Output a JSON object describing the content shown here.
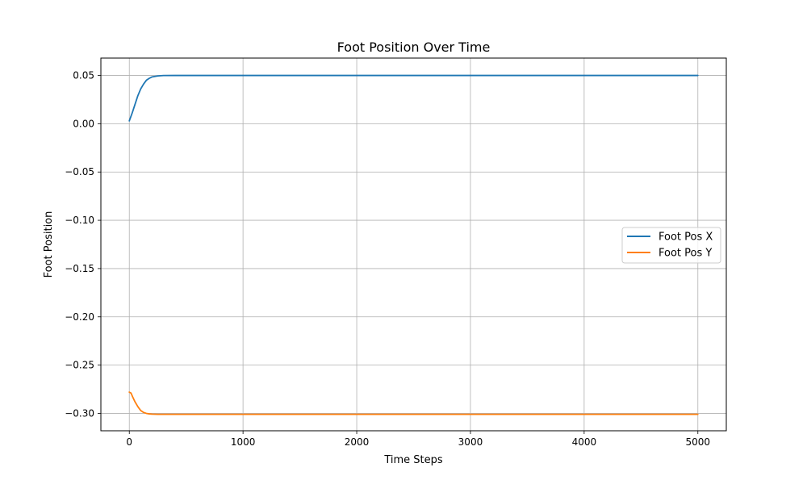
{
  "chart_data": {
    "type": "line",
    "title": "Foot Position Over Time",
    "xlabel": "Time Steps",
    "ylabel": "Foot Position",
    "xlim": [
      -250,
      5250
    ],
    "ylim": [
      -0.318,
      0.068
    ],
    "xticks": [
      0,
      1000,
      2000,
      3000,
      4000,
      5000
    ],
    "xtick_labels": [
      "0",
      "1000",
      "2000",
      "3000",
      "4000",
      "5000"
    ],
    "yticks": [
      0.05,
      0.0,
      -0.05,
      -0.1,
      -0.15,
      -0.2,
      -0.25,
      -0.3
    ],
    "ytick_labels": [
      "0.05",
      "0.00",
      "−0.05",
      "−0.10",
      "−0.15",
      "−0.20",
      "−0.25",
      "−0.30"
    ],
    "grid": true,
    "legend_position": "center-right",
    "series": [
      {
        "name": "Foot Pos X",
        "color": "#1f77b4",
        "x": [
          0,
          25,
          50,
          75,
          100,
          125,
          150,
          175,
          200,
          250,
          300,
          400,
          500,
          1000,
          2000,
          3000,
          4000,
          5000
        ],
        "y": [
          0.003,
          0.011,
          0.02,
          0.029,
          0.036,
          0.041,
          0.045,
          0.047,
          0.0485,
          0.0495,
          0.0499,
          0.05,
          0.05,
          0.05,
          0.05,
          0.05,
          0.05,
          0.05
        ]
      },
      {
        "name": "Foot Pos Y",
        "color": "#ff7f0e",
        "x": [
          0,
          15,
          30,
          50,
          75,
          100,
          125,
          150,
          175,
          200,
          250,
          300,
          400,
          500,
          1000,
          2000,
          3000,
          4000,
          5000
        ],
        "y": [
          -0.278,
          -0.279,
          -0.283,
          -0.288,
          -0.293,
          -0.297,
          -0.299,
          -0.3,
          -0.3005,
          -0.3008,
          -0.301,
          -0.301,
          -0.301,
          -0.301,
          -0.301,
          -0.301,
          -0.301,
          -0.301,
          -0.301
        ]
      }
    ]
  }
}
